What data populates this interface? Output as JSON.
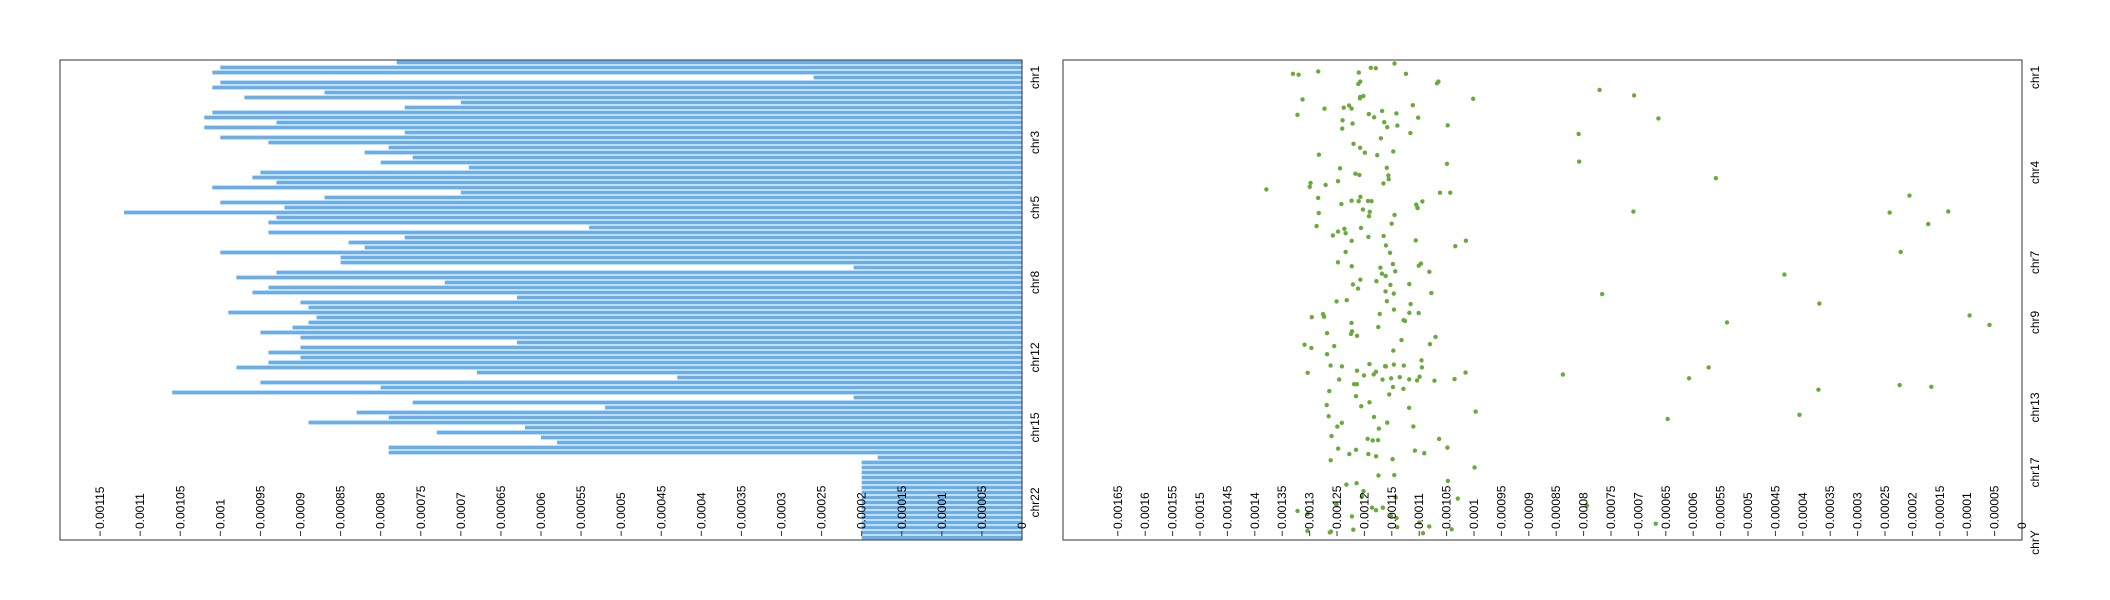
{
  "chart_data": [
    {
      "type": "bar",
      "orientation": "horizontal",
      "x_reversed": true,
      "color": "#6aaee8",
      "xlim": [
        0,
        0.0012
      ],
      "ticks": [
        "0",
        "0.00005",
        "0.0001",
        "0.00015",
        "0.0002",
        "0.00025",
        "0.0003",
        "0.00035",
        "0.0004",
        "0.00045",
        "0.0005",
        "0.00055",
        "0.0006",
        "0.00065",
        "0.0007",
        "0.00075",
        "0.0008",
        "0.00085",
        "0.0009",
        "0.00095",
        "0.001",
        "0.00105",
        "0.0011",
        "0.00115"
      ],
      "category_labels": [
        "chr1",
        "chr3",
        "chr5",
        "chr8",
        "chr12",
        "chr15",
        "chr22"
      ],
      "category_label_rows": [
        3,
        16,
        29,
        44,
        59,
        73,
        88
      ],
      "values": [
        0.00078,
        0.001,
        0.00101,
        0.00026,
        0.001,
        0.00101,
        0.00087,
        0.00097,
        0.0007,
        0.00077,
        0.00101,
        0.00102,
        0.00093,
        0.00102,
        0.00077,
        0.001,
        0.00094,
        0.00079,
        0.00082,
        0.00076,
        0.0008,
        0.00069,
        0.00095,
        0.00096,
        0.00093,
        0.00101,
        0.0007,
        0.00087,
        0.001,
        0.00092,
        0.00112,
        0.00093,
        0.00094,
        0.00054,
        0.00094,
        0.00077,
        0.00084,
        0.00082,
        0.001,
        0.00085,
        0.00085,
        0.00021,
        0.00093,
        0.00098,
        0.00072,
        0.00094,
        0.00096,
        0.00063,
        0.0009,
        0.00089,
        0.00099,
        0.00088,
        0.00089,
        0.00091,
        0.00095,
        0.0009,
        0.00063,
        0.0009,
        0.00094,
        0.0009,
        0.00094,
        0.00098,
        0.00068,
        0.00043,
        0.00095,
        0.0008,
        0.00106,
        0.00021,
        0.00076,
        0.00052,
        0.00083,
        0.00079,
        0.00089,
        0.00062,
        0.00073,
        0.0006,
        0.00058,
        0.00079,
        0.00079,
        0.00018,
        0.0002,
        0.0002,
        0.0002,
        0.0002,
        0.0002,
        0.0002,
        0.0002,
        0.0002,
        0.0002,
        0.0002,
        0.0002,
        0.0002,
        0.0002,
        0.0002,
        0.0002,
        0.0002
      ]
    },
    {
      "type": "scatter",
      "x_reversed": true,
      "color": "#6aaa3a",
      "xlim": [
        0,
        0.00175
      ],
      "ticks": [
        "0",
        "0.00005",
        "0.0001",
        "0.00015",
        "0.0002",
        "0.00025",
        "0.0003",
        "0.00035",
        "0.0004",
        "0.00045",
        "0.0005",
        "0.00055",
        "0.0006",
        "0.00065",
        "0.0007",
        "0.00075",
        "0.0008",
        "0.00085",
        "0.0009",
        "0.00095",
        "0.001",
        "0.00105",
        "0.0011",
        "0.00115",
        "0.0012",
        "0.00125",
        "0.0013",
        "0.00135",
        "0.0014",
        "0.00145",
        "0.0015",
        "0.00155",
        "0.0016",
        "0.00165"
      ],
      "category_labels": [
        "chr1",
        "chr4",
        "chr7",
        "chr9",
        "chr13",
        "chr17",
        "chrY"
      ],
      "category_label_rows": [
        3,
        22,
        40,
        52,
        69,
        82,
        96
      ]
    }
  ]
}
